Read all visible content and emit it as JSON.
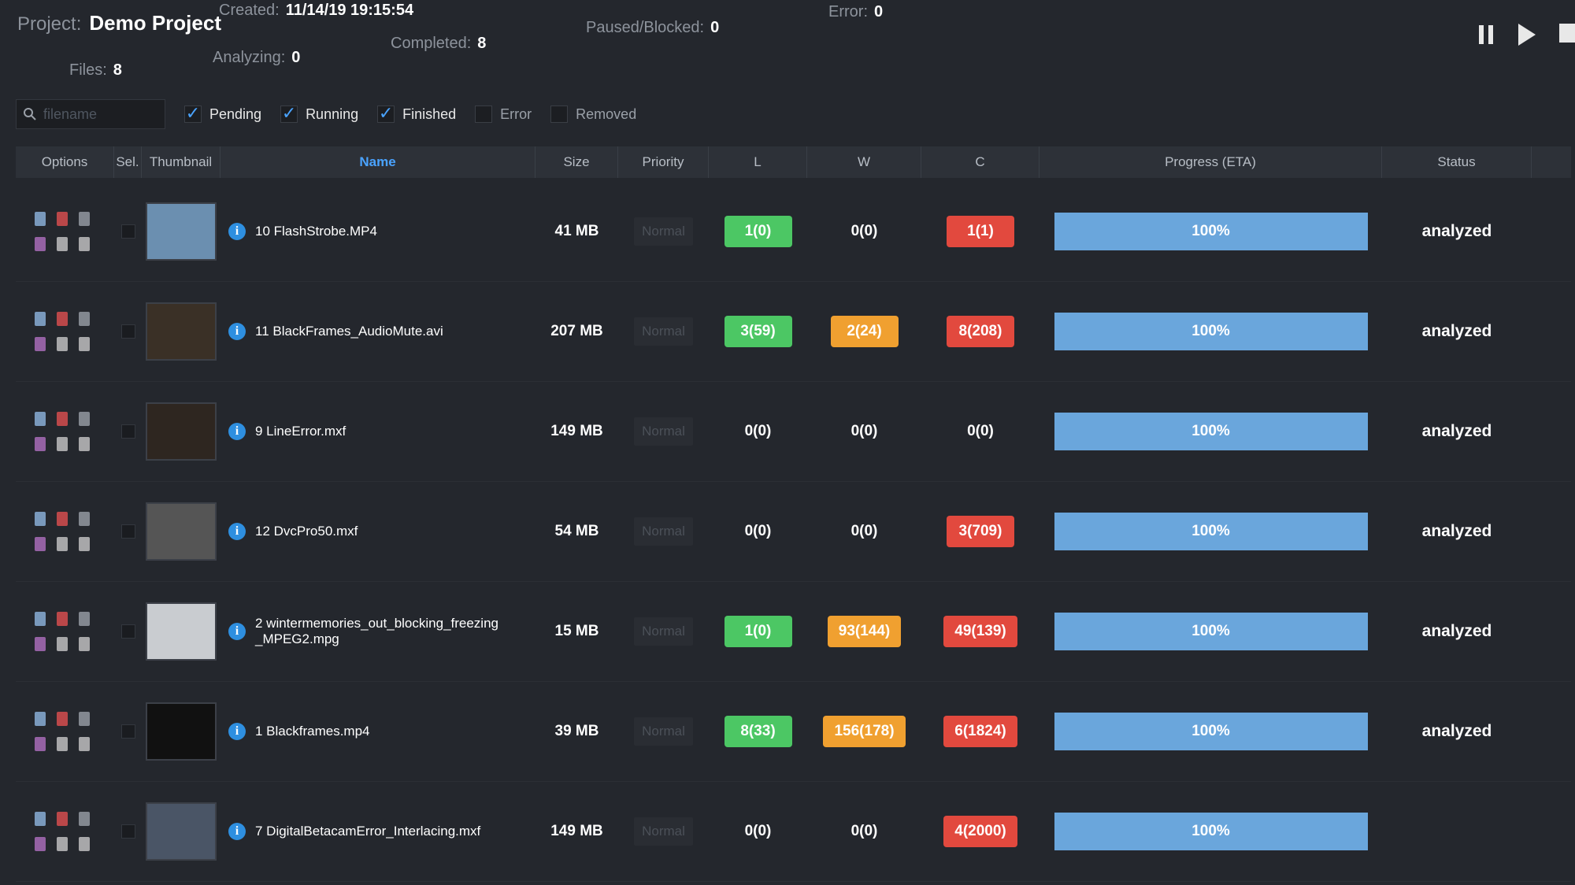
{
  "header": {
    "project_label": "Project:",
    "project_name": "Demo Project",
    "created_label": "Created:",
    "created_value": "11/14/19 19:15:54",
    "stats": [
      {
        "label": "Files:",
        "value": "8"
      },
      {
        "label": "Analyzing:",
        "value": "0"
      },
      {
        "label": "Completed:",
        "value": "8"
      },
      {
        "label": "Paused/Blocked:",
        "value": "0"
      },
      {
        "label": "Error:",
        "value": "0"
      }
    ]
  },
  "filters": {
    "search_placeholder": "filename",
    "checkboxes": [
      {
        "label": "Pending",
        "checked": true
      },
      {
        "label": "Running",
        "checked": true
      },
      {
        "label": "Finished",
        "checked": true
      },
      {
        "label": "Error",
        "checked": false
      },
      {
        "label": "Removed",
        "checked": false
      }
    ]
  },
  "table": {
    "columns": [
      "Options",
      "Sel.",
      "Thumbnail",
      "Name",
      "Size",
      "Priority",
      "L",
      "W",
      "C",
      "Progress (ETA)",
      "Status"
    ],
    "rows": [
      {
        "name": "10 FlashStrobe.MP4",
        "size": "41 MB",
        "priority": "Normal",
        "thumb": "#6b8fb0",
        "l": {
          "text": "1(0)",
          "color": "green"
        },
        "w": {
          "text": "0(0)"
        },
        "c": {
          "text": "1(1)",
          "color": "red"
        },
        "progress": "100%",
        "status": "analyzed"
      },
      {
        "name": "11 BlackFrames_AudioMute.avi",
        "size": "207 MB",
        "priority": "Normal",
        "thumb": "#3a3026",
        "l": {
          "text": "3(59)",
          "color": "green"
        },
        "w": {
          "text": "2(24)",
          "color": "orange"
        },
        "c": {
          "text": "8(208)",
          "color": "red"
        },
        "progress": "100%",
        "status": "analyzed"
      },
      {
        "name": "9 LineError.mxf",
        "size": "149 MB",
        "priority": "Normal",
        "thumb": "#2e2620",
        "l": {
          "text": "0(0)"
        },
        "w": {
          "text": "0(0)"
        },
        "c": {
          "text": "0(0)"
        },
        "progress": "100%",
        "status": "analyzed"
      },
      {
        "name": "12 DvcPro50.mxf",
        "size": "54 MB",
        "priority": "Normal",
        "thumb": "#555555",
        "l": {
          "text": "0(0)"
        },
        "w": {
          "text": "0(0)"
        },
        "c": {
          "text": "3(709)",
          "color": "red"
        },
        "progress": "100%",
        "status": "analyzed"
      },
      {
        "name": "2 wintermemories_out_blocking_freezing_MPEG2.mpg",
        "size": "15 MB",
        "priority": "Normal",
        "thumb": "#c9ccd0",
        "l": {
          "text": "1(0)",
          "color": "green"
        },
        "w": {
          "text": "93(144)",
          "color": "orange"
        },
        "c": {
          "text": "49(139)",
          "color": "red"
        },
        "progress": "100%",
        "status": "analyzed"
      },
      {
        "name": "1 Blackframes.mp4",
        "size": "39 MB",
        "priority": "Normal",
        "thumb": "#111111",
        "l": {
          "text": "8(33)",
          "color": "green"
        },
        "w": {
          "text": "156(178)",
          "color": "orange"
        },
        "c": {
          "text": "6(1824)",
          "color": "red"
        },
        "progress": "100%",
        "status": "analyzed"
      },
      {
        "name": "7 DigitalBetacamError_Interlacing.mxf",
        "size": "149 MB",
        "priority": "Normal",
        "thumb": "#4a5566",
        "l": {
          "text": "0(0)"
        },
        "w": {
          "text": "0(0)"
        },
        "c": {
          "text": "4(2000)",
          "color": "red"
        },
        "progress": "100%"
      }
    ]
  }
}
